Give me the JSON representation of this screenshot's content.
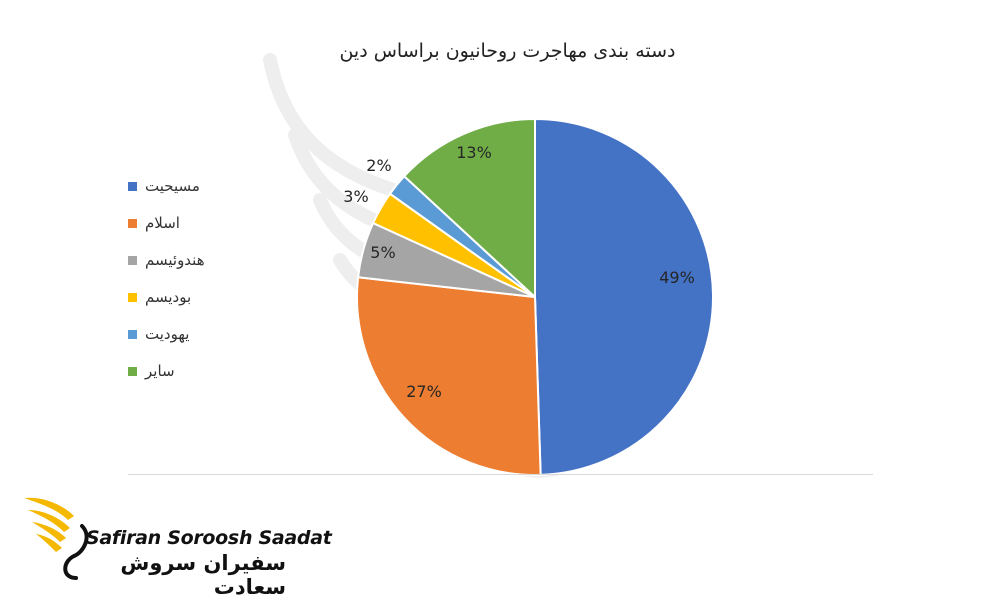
{
  "chart_data": {
    "type": "pie",
    "title": "دسته بندی مهاجرت روحانیون براساس دین",
    "legend_position": "left",
    "slices": [
      {
        "label": "مسیحیت",
        "value": 49,
        "display": "49%",
        "color": "#4472C4"
      },
      {
        "label": "اسلام",
        "value": 27,
        "display": "27%",
        "color": "#ED7D31"
      },
      {
        "label": "هندوئیسم",
        "value": 5,
        "display": "5%",
        "color": "#A5A5A5"
      },
      {
        "label": "بودیسم",
        "value": 3,
        "display": "3%",
        "color": "#FFC000"
      },
      {
        "label": "یهودیت",
        "value": 2,
        "display": "2%",
        "color": "#5B9BD5"
      },
      {
        "label": "سایر",
        "value": 13,
        "display": "13%",
        "color": "#70AD47"
      }
    ]
  },
  "brand": {
    "name_latin": "Safiran Soroosh Saadat",
    "name_persian": "سفیران سروش سعادت",
    "accent_color": "#F5B800"
  }
}
